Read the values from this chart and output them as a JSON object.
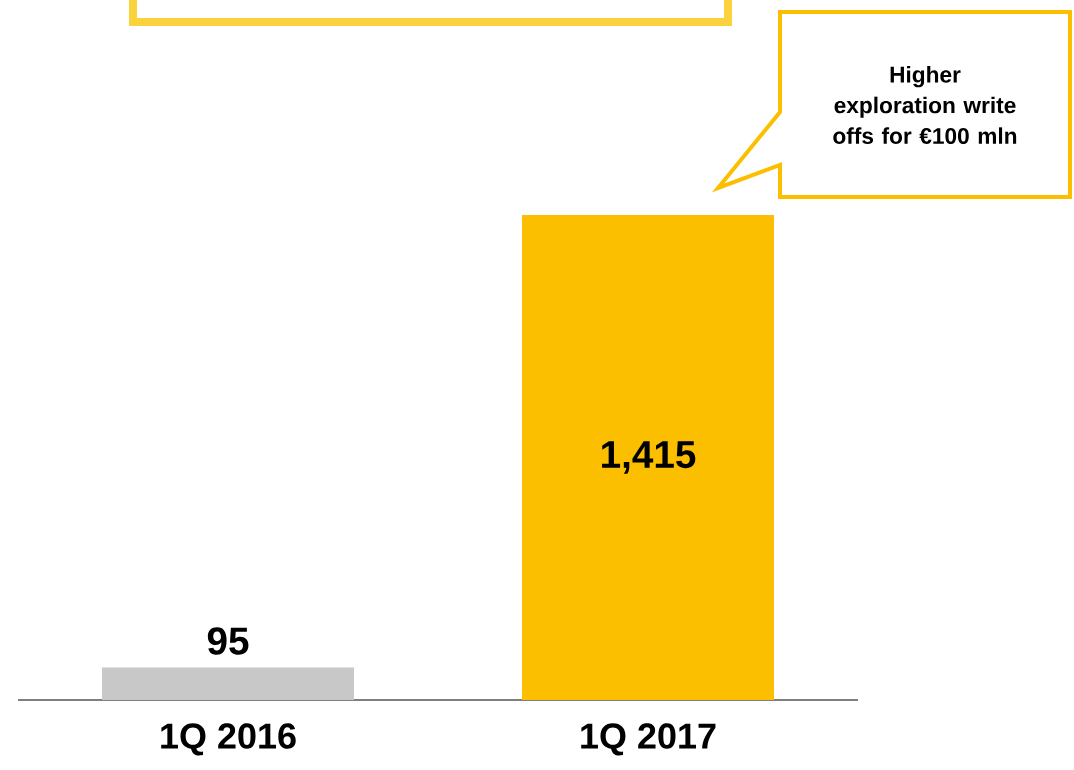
{
  "chart_data": {
    "type": "bar",
    "categories": [
      "1Q 2016",
      "1Q 2017"
    ],
    "values": [
      95,
      1415
    ],
    "colors": [
      "#c8c8c8",
      "#fcbf00"
    ],
    "value_labels": [
      "95",
      "1,415"
    ],
    "annotations": [
      "Higher exploration write offs for €100 mln"
    ]
  }
}
